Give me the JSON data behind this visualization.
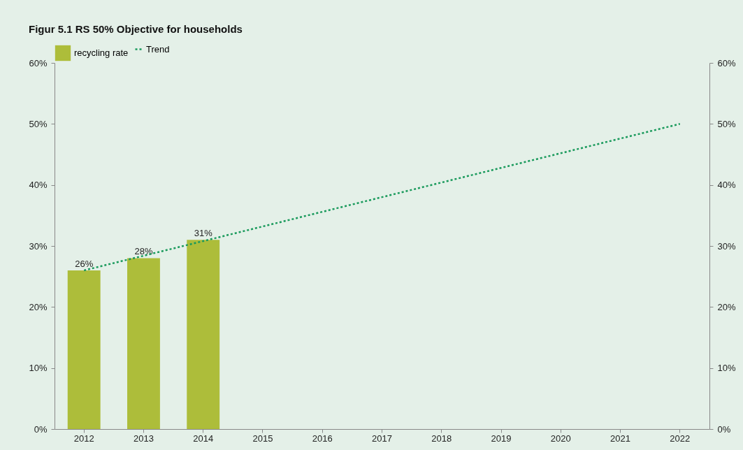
{
  "chart_data": {
    "type": "bar",
    "title": "Figur 5.1 RS 50% Objective for households",
    "categories": [
      "2012",
      "2013",
      "2014",
      "2015",
      "2016",
      "2017",
      "2018",
      "2019",
      "2020",
      "2021",
      "2022"
    ],
    "series": [
      {
        "name": "recycling rate",
        "color": "#adbd3a",
        "values": [
          26,
          28,
          31,
          null,
          null,
          null,
          null,
          null,
          null,
          null,
          null
        ],
        "value_labels": [
          "26%",
          "28%",
          "31%",
          null,
          null,
          null,
          null,
          null,
          null,
          null,
          null
        ]
      },
      {
        "name": "Trend",
        "type": "line",
        "color": "#1a9a5c",
        "line_style": "dotted",
        "values": [
          26,
          28.4,
          30.8,
          33.2,
          35.6,
          38,
          40.4,
          42.8,
          45.2,
          47.6,
          50
        ]
      }
    ],
    "ylim": [
      0,
      60
    ],
    "yticks": [
      {
        "value": 0,
        "label": "0%"
      },
      {
        "value": 10,
        "label": "10%"
      },
      {
        "value": 20,
        "label": "20%"
      },
      {
        "value": 30,
        "label": "30%"
      },
      {
        "value": 40,
        "label": "40%"
      },
      {
        "value": 50,
        "label": "50%"
      },
      {
        "value": 60,
        "label": "60%"
      }
    ],
    "y2lim": [
      0,
      60
    ],
    "y2ticks": [
      {
        "value": 0,
        "label": "0%"
      },
      {
        "value": 10,
        "label": "10%"
      },
      {
        "value": 20,
        "label": "20%"
      },
      {
        "value": 30,
        "label": "30%"
      },
      {
        "value": 40,
        "label": "40%"
      },
      {
        "value": 50,
        "label": "50%"
      },
      {
        "value": 60,
        "label": "60%"
      }
    ],
    "grid": false,
    "legend": "top"
  }
}
